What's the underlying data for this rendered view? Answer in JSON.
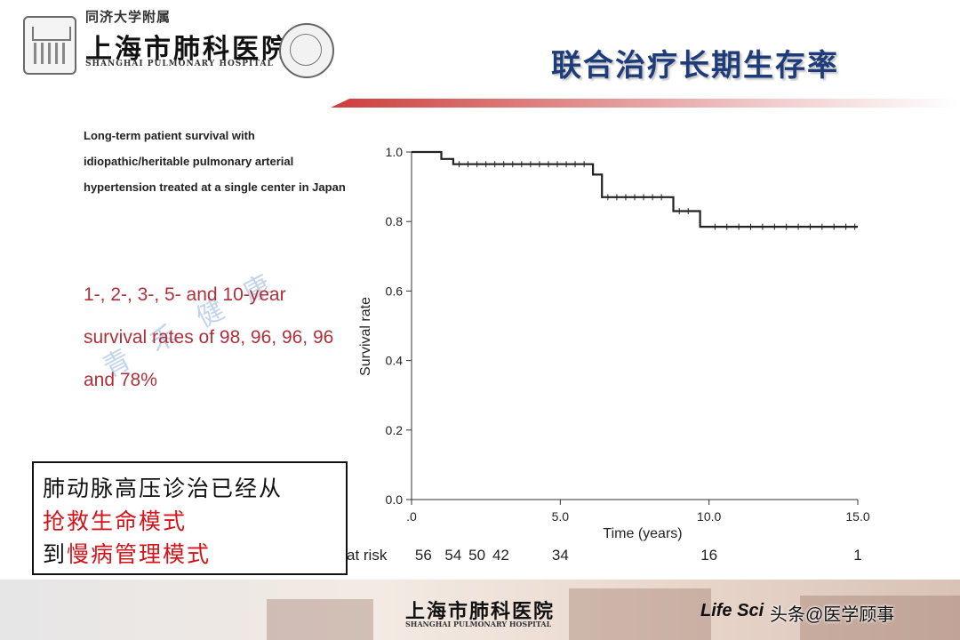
{
  "header": {
    "affiliation": "同济大学附属",
    "hospital_name": "上海市肺科医院",
    "hospital_en": "SHANGHAI PULMONARY HOSPITAL",
    "slide_title": "联合治疗长期生存率"
  },
  "study_description": "Long-term patient survival with idiopathic/heritable pulmonary arterial hypertension treated at a single center in Japan",
  "survival_text": "1-, 2-, 3-, 5- and 10-year survival rates of 98, 96, 96, 96 and 78%",
  "watermark": "青 禾 健 康",
  "callout": {
    "line1": "肺动脉高压诊治已经从",
    "line2": "抢救生命模式",
    "line3_prefix": "到",
    "line3_highlight": "慢病管理模式"
  },
  "chart_data": {
    "type": "line",
    "title": "",
    "xlabel": "Time (years)",
    "ylabel": "Survival rate",
    "xlim": [
      0,
      15
    ],
    "ylim": [
      0,
      1
    ],
    "x_tick_labels": [
      ".0",
      "5.0",
      "10.0",
      "15.0"
    ],
    "x_ticks": [
      0,
      5,
      10,
      15
    ],
    "y_tick_labels": [
      "0.0",
      "0.2",
      "0.4",
      "0.6",
      "0.8",
      "1.0"
    ],
    "y_ticks": [
      0,
      0.2,
      0.4,
      0.6,
      0.8,
      1.0
    ],
    "series": [
      {
        "step": [
          [
            0,
            1.0
          ],
          [
            1.0,
            1.0
          ],
          [
            1.0,
            0.98
          ],
          [
            1.4,
            0.98
          ],
          [
            1.4,
            0.965
          ],
          [
            6.1,
            0.965
          ],
          [
            6.1,
            0.935
          ],
          [
            6.4,
            0.935
          ],
          [
            6.4,
            0.87
          ],
          [
            8.8,
            0.87
          ],
          [
            8.8,
            0.83
          ],
          [
            9.7,
            0.83
          ],
          [
            9.7,
            0.785
          ],
          [
            15.0,
            0.785
          ]
        ],
        "censored": [
          1.6,
          1.9,
          2.2,
          2.5,
          2.8,
          3.1,
          3.4,
          3.7,
          4.0,
          4.3,
          4.6,
          4.9,
          5.2,
          5.5,
          5.8,
          6.6,
          6.9,
          7.2,
          7.5,
          7.8,
          8.1,
          8.4,
          9.0,
          9.3,
          10.2,
          10.6,
          11.0,
          11.4,
          11.8,
          12.2,
          12.6,
          13.0,
          13.4,
          13.8,
          14.2,
          14.6,
          14.9
        ]
      }
    ],
    "at_risk_label": "at risk",
    "at_risk": [
      {
        "x": 0.4,
        "n": "56"
      },
      {
        "x": 1.4,
        "n": "54"
      },
      {
        "x": 2.2,
        "n": "50"
      },
      {
        "x": 3.0,
        "n": "42"
      },
      {
        "x": 5.0,
        "n": "34"
      },
      {
        "x": 10.0,
        "n": "16"
      },
      {
        "x": 15.0,
        "n": "1"
      }
    ]
  },
  "footer": {
    "hospital_name": "上海市肺科医院",
    "hospital_en": "SHANGHAI PULMONARY HOSPITAL",
    "journal": "Life Sci",
    "brand": "头条@医学顾事"
  }
}
